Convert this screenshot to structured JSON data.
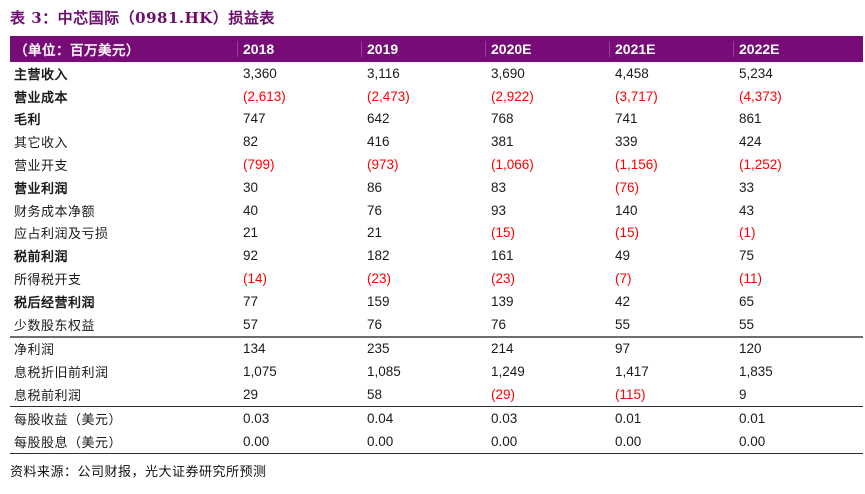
{
  "title": "表 3：中芯国际（0981.HK）损益表",
  "table": {
    "unit_label": "（单位：百万美元）",
    "columns": [
      "2018",
      "2019",
      "2020E",
      "2021E",
      "2022E"
    ],
    "rows": [
      {
        "label": "主营收入",
        "bold": true,
        "border": "",
        "values": [
          "3,360",
          "3,116",
          "3,690",
          "4,458",
          "5,234"
        ]
      },
      {
        "label": "营业成本",
        "bold": true,
        "border": "",
        "values": [
          "(2,613)",
          "(2,473)",
          "(2,922)",
          "(3,717)",
          "(4,373)"
        ]
      },
      {
        "label": "毛利",
        "bold": true,
        "border": "",
        "values": [
          "747",
          "642",
          "768",
          "741",
          "861"
        ]
      },
      {
        "label": "其它收入",
        "bold": false,
        "border": "",
        "values": [
          "82",
          "416",
          "381",
          "339",
          "424"
        ]
      },
      {
        "label": "营业开支",
        "bold": false,
        "border": "",
        "values": [
          "(799)",
          "(973)",
          "(1,066)",
          "(1,156)",
          "(1,252)"
        ]
      },
      {
        "label": "营业利润",
        "bold": true,
        "border": "",
        "values": [
          "30",
          "86",
          "83",
          "(76)",
          "33"
        ]
      },
      {
        "label": "财务成本净额",
        "bold": false,
        "border": "",
        "values": [
          "40",
          "76",
          "93",
          "140",
          "43"
        ]
      },
      {
        "label": "应占利润及亏损",
        "bold": false,
        "border": "",
        "values": [
          "21",
          "21",
          "(15)",
          "(15)",
          "(1)"
        ]
      },
      {
        "label": "税前利润",
        "bold": true,
        "border": "",
        "values": [
          "92",
          "182",
          "161",
          "49",
          "75"
        ]
      },
      {
        "label": "所得税开支",
        "bold": false,
        "border": "",
        "values": [
          "(14)",
          "(23)",
          "(23)",
          "(7)",
          "(11)"
        ]
      },
      {
        "label": "税后经营利润",
        "bold": true,
        "border": "",
        "values": [
          "77",
          "159",
          "139",
          "42",
          "65"
        ]
      },
      {
        "label": "少数股东权益",
        "bold": false,
        "border": "thick",
        "values": [
          "57",
          "76",
          "76",
          "55",
          "55"
        ]
      },
      {
        "label": "净利润",
        "bold": false,
        "border": "",
        "values": [
          "134",
          "235",
          "214",
          "97",
          "120"
        ]
      },
      {
        "label": "息税折旧前利润",
        "bold": false,
        "border": "",
        "values": [
          "1,075",
          "1,085",
          "1,249",
          "1,417",
          "1,835"
        ]
      },
      {
        "label": "息税前利润",
        "bold": false,
        "border": "thin",
        "values": [
          "29",
          "58",
          "(29)",
          "(115)",
          "9"
        ]
      },
      {
        "label": "每股收益（美元）",
        "bold": false,
        "border": "",
        "values": [
          "0.03",
          "0.04",
          "0.03",
          "0.01",
          "0.01"
        ]
      },
      {
        "label": "每股股息（美元）",
        "bold": false,
        "border": "thin",
        "values": [
          "0.00",
          "0.00",
          "0.00",
          "0.00",
          "0.00"
        ]
      }
    ]
  },
  "footer": "资料来源：公司财报，光大证券研究所预测",
  "colors": {
    "header_bg": "#770B77",
    "title_color": "#6E0B6E",
    "negative": "#FF0000",
    "header_text": "#FFFFFF"
  }
}
